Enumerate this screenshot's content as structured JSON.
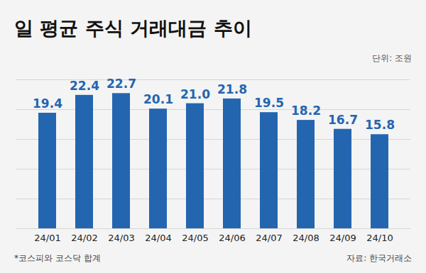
{
  "chart_data": {
    "type": "bar",
    "title": "일 평균 주식 거래대금 추이",
    "subtitle": "단위: 조원",
    "footnote": "*코스피와 코스닥 합계",
    "source": "자료: 한국거래소",
    "categories": [
      "24/01",
      "24/02",
      "24/03",
      "24/04",
      "24/05",
      "24/06",
      "24/07",
      "24/08",
      "24/09",
      "24/10"
    ],
    "values": [
      19.4,
      22.4,
      22.7,
      20.1,
      21.0,
      21.8,
      19.5,
      18.2,
      16.7,
      15.8
    ],
    "value_labels": [
      "19.4",
      "22.4",
      "22.7",
      "20.1",
      "21.0",
      "21.8",
      "19.5",
      "18.2",
      "16.7",
      "15.8"
    ],
    "color": "#2465b0",
    "ylim": [
      0,
      25
    ],
    "yticks": [
      0,
      5,
      10,
      15,
      20,
      25
    ],
    "grid": true,
    "data_labels": true,
    "tick_labels": "x"
  }
}
